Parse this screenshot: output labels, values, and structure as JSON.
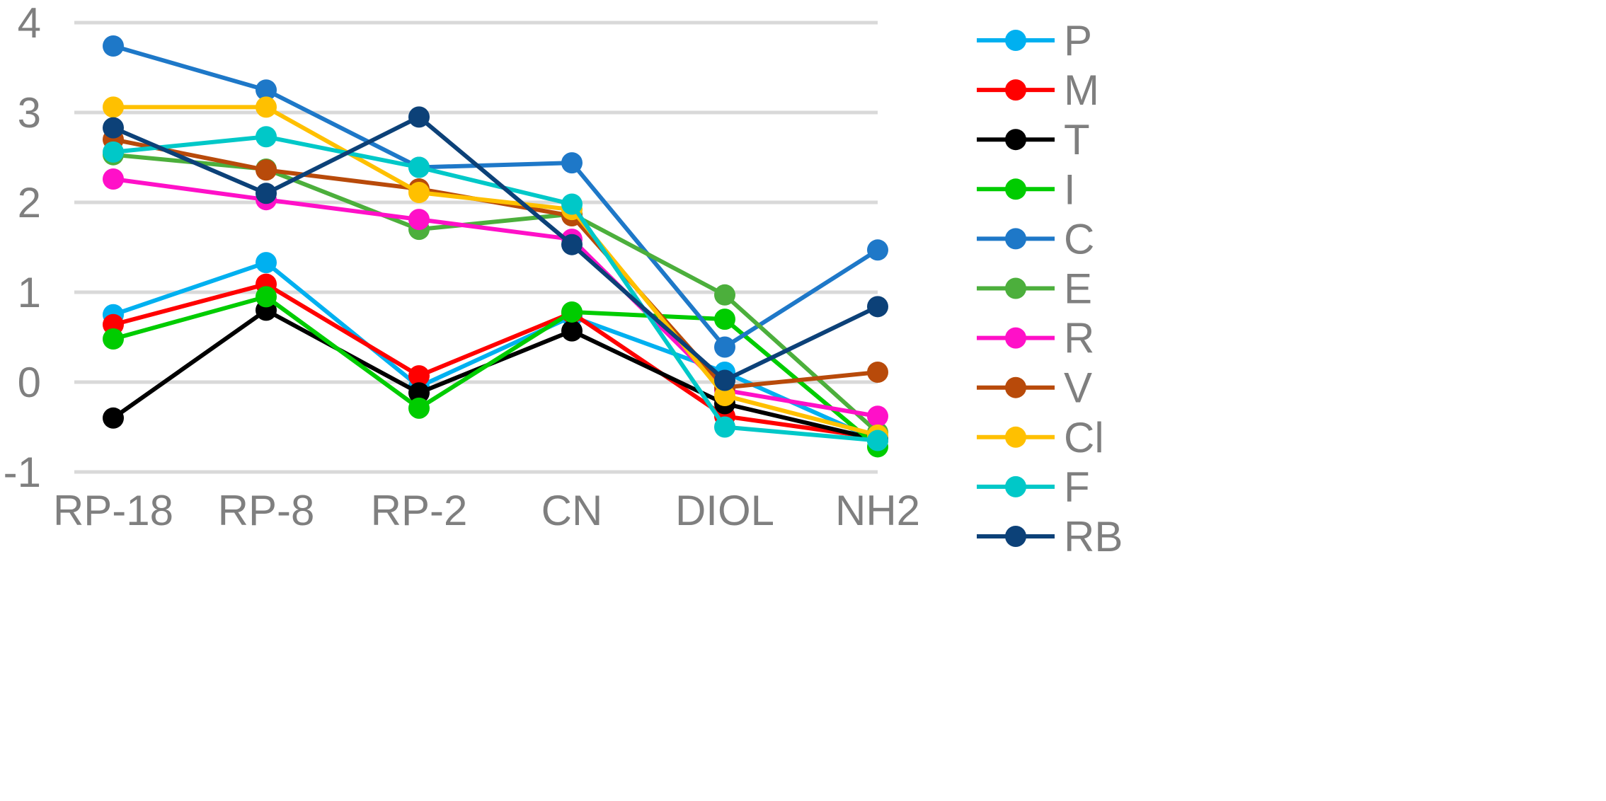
{
  "chart_data": {
    "type": "line",
    "title": "",
    "xlabel": "",
    "ylabel": "",
    "categories": [
      "RP-18",
      "RP-8",
      "RP-2",
      "CN",
      "DIOL",
      "NH2"
    ],
    "ylim": [
      -1,
      4
    ],
    "yticks": [
      -1,
      0,
      1,
      2,
      3,
      4
    ],
    "grid": true,
    "legend_position": "right",
    "series": [
      {
        "name": "P",
        "color": "#00b0f0",
        "values": [
          0.75,
          1.33,
          -0.05,
          0.73,
          0.11,
          -0.65
        ]
      },
      {
        "name": "M",
        "color": "#ff0000",
        "values": [
          0.64,
          1.09,
          0.07,
          0.77,
          -0.38,
          -0.62
        ]
      },
      {
        "name": "T",
        "color": "#000000",
        "values": [
          -0.4,
          0.8,
          -0.12,
          0.57,
          -0.24,
          -0.64
        ]
      },
      {
        "name": "I",
        "color": "#00cc00",
        "values": [
          0.48,
          0.95,
          -0.29,
          0.78,
          0.7,
          -0.72
        ]
      },
      {
        "name": "C",
        "color": "#1e78c8",
        "values": [
          3.74,
          3.25,
          2.39,
          2.44,
          0.39,
          1.47
        ]
      },
      {
        "name": "E",
        "color": "#4caf3c",
        "values": [
          2.53,
          2.37,
          1.7,
          1.87,
          0.97,
          -0.56
        ]
      },
      {
        "name": "R",
        "color": "#ff10c8",
        "values": [
          2.26,
          2.03,
          1.81,
          1.59,
          -0.09,
          -0.38
        ]
      },
      {
        "name": "V",
        "color": "#b84a0a",
        "values": [
          2.7,
          2.36,
          2.15,
          1.85,
          -0.06,
          0.11
        ]
      },
      {
        "name": "Cl",
        "color": "#ffc000",
        "values": [
          3.06,
          3.06,
          2.11,
          1.92,
          -0.15,
          -0.59
        ]
      },
      {
        "name": "F",
        "color": "#00c8c8",
        "values": [
          2.56,
          2.73,
          2.39,
          1.98,
          -0.5,
          -0.65
        ]
      },
      {
        "name": "RB",
        "color": "#0c4178",
        "values": [
          2.83,
          2.1,
          2.95,
          1.53,
          0.02,
          0.84
        ]
      }
    ]
  }
}
